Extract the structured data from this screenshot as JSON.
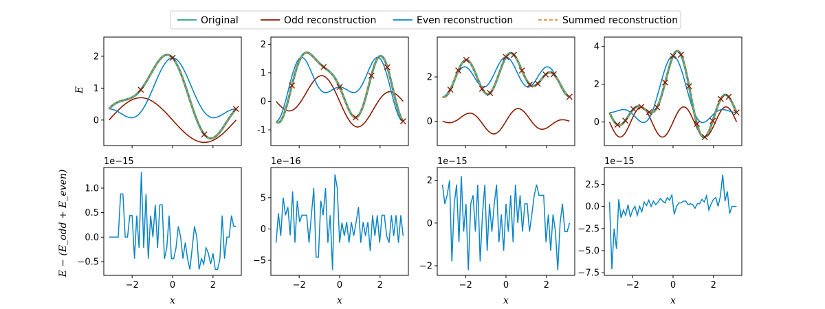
{
  "legend": {
    "items": [
      {
        "label": "Original",
        "color": "#2a9d8f",
        "style": "solid"
      },
      {
        "label": "Odd reconstruction",
        "color": "#8b1a00",
        "style": "solid"
      },
      {
        "label": "Even reconstruction",
        "color": "#0a85c7",
        "style": "solid"
      },
      {
        "label": "Summed reconstruction",
        "color": "#f4862a",
        "style": "dashed"
      }
    ]
  },
  "labels": {
    "top_ylabel": "E",
    "bottom_ylabel": "E − (E_odd + E_even)",
    "xlabel": "x"
  },
  "chart_data": [
    {
      "type": "line",
      "panel": "top-1",
      "xlim": [
        -3.4,
        3.4
      ],
      "ylim": [
        -0.8,
        2.6
      ],
      "yticks": [
        0,
        1,
        2
      ],
      "original": {
        "a0": 0.7,
        "a1": 0.8,
        "b1": -0.7,
        "a2": 0.45,
        "b2": 0,
        "a3": 0,
        "b3": 0
      },
      "markers_x": [
        -1.57,
        0,
        1.57,
        3.14
      ]
    },
    {
      "type": "line",
      "panel": "top-2",
      "xlim": [
        -3.4,
        3.4
      ],
      "ylim": [
        -1.55,
        2.25
      ],
      "yticks": [
        -1,
        0,
        1,
        2
      ],
      "original": {
        "a0": 0.6,
        "a1": 0.1,
        "b1": -0.4,
        "a2": -0.7,
        "b2": -0.6,
        "a3": 0,
        "b3": 0.5
      },
      "markers_x": [
        -2.36,
        -0.79,
        0,
        0.79,
        1.57,
        2.36,
        3.14
      ]
    },
    {
      "type": "line",
      "panel": "top-3",
      "xlim": [
        -3.4,
        3.4
      ],
      "ylim": [
        -1.1,
        3.8
      ],
      "yticks": [
        0,
        2
      ],
      "original": {
        "a0": 2.0,
        "a1": 0.3,
        "b1": 0,
        "a2": 0,
        "b2": 0.3,
        "a3": 0.3,
        "b3": 0.6
      },
      "markers_x": [
        -2.75,
        -2.36,
        -1.96,
        -1.18,
        -0.79,
        0,
        0.39,
        0.79,
        1.18,
        1.57,
        1.96,
        2.36,
        3.14
      ]
    },
    {
      "type": "line",
      "panel": "top-4",
      "xlim": [
        -3.4,
        3.4
      ],
      "ylim": [
        -1.25,
        4.5
      ],
      "yticks": [
        0,
        2,
        4
      ],
      "original": {
        "a0": 1.0,
        "a1": 1.0,
        "b1": 0,
        "a2": 1.0,
        "b2": 0,
        "a3": 0.8,
        "b3": 0.5
      },
      "markers_x": [
        -2.75,
        -2.36,
        -1.96,
        -1.57,
        -1.18,
        -0.79,
        -0.39,
        0,
        0.39,
        0.79,
        1.18,
        1.57,
        1.96,
        2.36,
        2.75,
        3.14
      ]
    },
    {
      "type": "line",
      "panel": "bottom-1",
      "xlim": [
        -3.4,
        3.4
      ],
      "ylim": [
        -0.78,
        1.42
      ],
      "yticks": [
        -0.5,
        0.0,
        0.5,
        1.0
      ],
      "ytick_labels": [
        "−0.5",
        "0.0",
        "0.5",
        "1.0"
      ],
      "sci": "1e−15",
      "values": [
        0.0,
        0.0,
        0.0,
        0.0,
        0.0,
        0.88,
        0.88,
        0.0,
        0.0,
        0.44,
        0.44,
        -0.44,
        0.44,
        -0.22,
        1.33,
        -0.22,
        0.88,
        -0.44,
        0.44,
        0.0,
        0.66,
        -0.22,
        0.66,
        0.66,
        -0.44,
        -0.22,
        0.44,
        -0.44,
        -0.44,
        -0.22,
        0.22,
        0.0,
        -0.44,
        -0.11,
        -0.44,
        -0.66,
        -0.22,
        0.22,
        0.0,
        -0.66,
        -0.44,
        -0.55,
        -0.22,
        -0.33,
        -0.55,
        -0.33,
        -0.66,
        -0.66,
        -0.44,
        0.44,
        -0.44,
        0.0,
        0.0,
        0.44,
        0.22,
        0.22
      ]
    },
    {
      "type": "line",
      "panel": "bottom-2",
      "xlim": [
        -3.4,
        3.4
      ],
      "ylim": [
        -7.4,
        9.8
      ],
      "yticks": [
        -5,
        0,
        5
      ],
      "ytick_labels": [
        "−5",
        "0",
        "5"
      ],
      "sci": "1e−16",
      "values": [
        -2.2,
        2.5,
        -1.1,
        5.0,
        2.2,
        3.5,
        -1.0,
        6.0,
        -2.2,
        4.5,
        1.1,
        2.2,
        2.2,
        2.2,
        -2.2,
        2.2,
        6.5,
        -4.5,
        -4.5,
        4.5,
        2.2,
        6.5,
        -2.2,
        2.2,
        -6.5,
        8.7,
        6.5,
        -2.2,
        1.0,
        -1.1,
        1.1,
        -2.2,
        1.1,
        -1.1,
        1.1,
        3.5,
        -2.2,
        1.1,
        -1.1,
        1.1,
        -3.5,
        2.2,
        -1.1,
        2.2,
        -2.2,
        2.2,
        2.2,
        -1.1,
        -2.2,
        2.2,
        -1.1,
        2.2,
        -2.2,
        2.2,
        -1.1
      ]
    },
    {
      "type": "line",
      "panel": "bottom-3",
      "xlim": [
        -3.4,
        3.4
      ],
      "ylim": [
        -2.45,
        2.6
      ],
      "yticks": [
        -2,
        0,
        2
      ],
      "ytick_labels": [
        "−2",
        "0",
        "2"
      ],
      "sci": "1e−15",
      "values": [
        1.8,
        0.9,
        1.3,
        2.0,
        -1.8,
        0.9,
        1.8,
        -0.9,
        2.2,
        -0.4,
        0.9,
        -2.2,
        0.9,
        1.3,
        -0.4,
        1.8,
        -1.8,
        0.4,
        1.8,
        -1.3,
        0.9,
        -0.4,
        0.9,
        1.8,
        -0.9,
        0.4,
        -1.3,
        0.9,
        -0.4,
        1.3,
        -0.9,
        1.8,
        0.0,
        1.3,
        -0.4,
        0.9,
        0.9,
        -0.4,
        0.4,
        1.3,
        1.8,
        1.3,
        1.3,
        1.3,
        -0.9,
        0.4,
        -1.3,
        0.4,
        -0.4,
        -2.2,
        0.0,
        0.9,
        -0.4,
        -0.4,
        0.0
      ]
    },
    {
      "type": "line",
      "panel": "bottom-4",
      "xlim": [
        -3.4,
        3.4
      ],
      "ylim": [
        -7.8,
        4.4
      ],
      "yticks": [
        -7.5,
        -5.0,
        -2.5,
        0.0,
        2.5
      ],
      "ytick_labels": [
        "−7.5",
        "−5.0",
        "−2.5",
        "0.0",
        "2.5"
      ],
      "sci": "1e−15",
      "values": [
        0.5,
        -7.1,
        -2.5,
        -4.8,
        0.8,
        -1.3,
        -0.4,
        -1.0,
        0.2,
        -1.2,
        -0.4,
        0.0,
        -1.0,
        0.0,
        -0.6,
        0.5,
        0.1,
        0.7,
        0.0,
        0.6,
        0.2,
        0.5,
        0.9,
        0.6,
        0.4,
        1.0,
        0.7,
        1.3,
        -0.9,
        0.0,
        0.4,
        0.4,
        0.6,
        0.6,
        0.2,
        0.3,
        0.2,
        -0.2,
        0.3,
        0.3,
        0.8,
        0.5,
        1.2,
        -0.4,
        0.3,
        0.8,
        1.0,
        0.0,
        1.2,
        3.6,
        0.6,
        1.7,
        -0.8,
        0.0,
        0.0,
        0.0
      ]
    }
  ],
  "xticks": [
    -2,
    0,
    2
  ],
  "xtick_labels": [
    "−2",
    "0",
    "2"
  ]
}
